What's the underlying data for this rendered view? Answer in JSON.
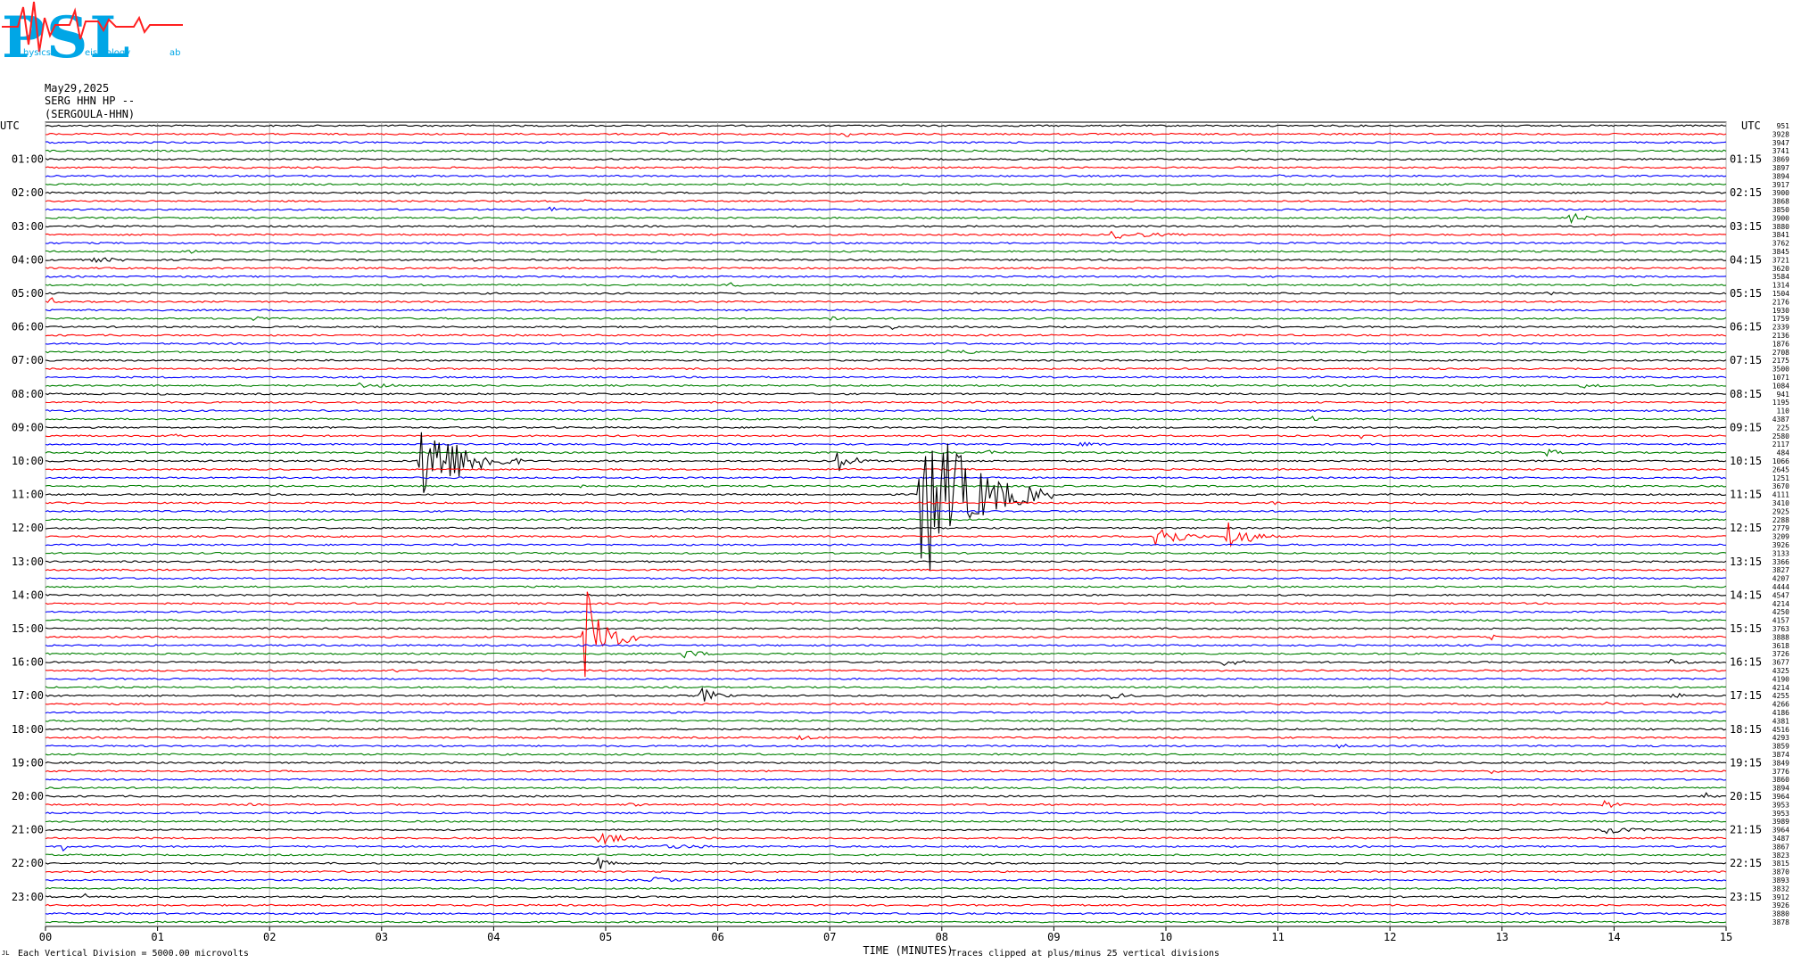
{
  "logo": {
    "text": "PSL",
    "caption_1": "hysics",
    "caption_2": "eismology",
    "caption_3": "ab"
  },
  "header": {
    "date": "May29,2025",
    "station": "SERG HHN HP --",
    "channel": "(SERGOULA-HHN)"
  },
  "axes": {
    "left_title": "UTC",
    "right_title": "UTC",
    "xlabel": "TIME (MINUTES)",
    "x_ticks": [
      "00",
      "01",
      "02",
      "03",
      "04",
      "05",
      "06",
      "07",
      "08",
      "09",
      "10",
      "11",
      "12",
      "13",
      "14",
      "15"
    ]
  },
  "left_hour_labels": [
    "01:00",
    "02:00",
    "03:00",
    "04:00",
    "05:00",
    "06:00",
    "07:00",
    "08:00",
    "09:00",
    "10:00",
    "11:00",
    "12:00",
    "13:00",
    "14:00",
    "15:00",
    "16:00",
    "17:00",
    "18:00",
    "19:00",
    "20:00",
    "21:00",
    "22:00",
    "23:00"
  ],
  "right_hour_labels": [
    "01:15",
    "02:15",
    "03:15",
    "04:15",
    "05:15",
    "06:15",
    "07:15",
    "08:15",
    "09:15",
    "10:15",
    "11:15",
    "12:15",
    "13:15",
    "14:15",
    "15:15",
    "16:15",
    "17:15",
    "18:15",
    "19:15",
    "20:15",
    "21:15",
    "22:15",
    "23:15"
  ],
  "footer": {
    "division": "Each Vertical Division = 5000.00 microvolts",
    "clip": "Traces clipped at plus/minus 25 vertical divisions",
    "corner": "JL"
  },
  "chart_data": {
    "type": "line",
    "title": "",
    "xlabel": "TIME (MINUTES)",
    "ylabel": "UTC",
    "xlim": [
      0,
      15
    ],
    "trace_count": 96,
    "trace_minutes": 15,
    "color_cycle": [
      "#000000",
      "#ff0000",
      "#0000ff",
      "#008000"
    ],
    "grid": true,
    "trace_offsets": [
      951,
      3928,
      3947,
      3741,
      3869,
      3897,
      3894,
      3917,
      3900,
      3868,
      3850,
      3900,
      3880,
      3841,
      3762,
      3845,
      3721,
      3620,
      3584,
      1314,
      1504,
      2176,
      1930,
      1759,
      2339,
      2136,
      1876,
      2708,
      2175,
      3500,
      1071,
      1084,
      941,
      1195,
      110,
      4387,
      225,
      2580,
      2117,
      484,
      1066,
      2645,
      1251,
      3670,
      4111,
      3410,
      2925,
      2288,
      2779,
      3209,
      3926,
      3133,
      3366,
      3827,
      4207,
      4444,
      4547,
      4214,
      4250,
      4157,
      3763,
      3888,
      3618,
      3726,
      3677,
      4325,
      4190,
      4214,
      4255,
      4266,
      4186,
      4381,
      4516,
      4293,
      3859,
      3874,
      3849,
      3776,
      3860,
      3894,
      3964,
      3953,
      3953,
      3989,
      3964,
      3487,
      3867,
      3823,
      3815,
      3870,
      3893,
      3832,
      3912,
      3926,
      3880,
      3878
    ],
    "events": [
      {
        "row": 1,
        "minute": 5.45,
        "amp": 3,
        "dur": 0.3
      },
      {
        "row": 1,
        "minute": 7.15,
        "amp": 8,
        "dur": 0.05
      },
      {
        "row": 4,
        "minute": 14.25,
        "amp": 3,
        "dur": 0.05
      },
      {
        "row": 6,
        "minute": 11.0,
        "amp": 2,
        "dur": 0.2
      },
      {
        "row": 9,
        "minute": 4.8,
        "amp": 2,
        "dur": 0.3
      },
      {
        "row": 10,
        "minute": 4.5,
        "amp": 3,
        "dur": 0.5
      },
      {
        "row": 11,
        "minute": 13.6,
        "amp": 10,
        "dur": 0.3
      },
      {
        "row": 13,
        "minute": 9.5,
        "amp": 5,
        "dur": 1.3
      },
      {
        "row": 13,
        "minute": 12.0,
        "amp": 2,
        "dur": 0.4
      },
      {
        "row": 15,
        "minute": 1.3,
        "amp": 3,
        "dur": 0.2
      },
      {
        "row": 16,
        "minute": 0.4,
        "amp": 3,
        "dur": 1.3
      },
      {
        "row": 16,
        "minute": 3.8,
        "amp": 3,
        "dur": 0.8
      },
      {
        "row": 16,
        "minute": 11.3,
        "amp": 3,
        "dur": 0.1
      },
      {
        "row": 19,
        "minute": 6.1,
        "amp": 3,
        "dur": 0.5
      },
      {
        "row": 20,
        "minute": 13.4,
        "amp": 2,
        "dur": 0.6
      },
      {
        "row": 21,
        "minute": 0.05,
        "amp": 8,
        "dur": 0.05
      },
      {
        "row": 23,
        "minute": 1.85,
        "amp": 4,
        "dur": 0.4
      },
      {
        "row": 23,
        "minute": 7.0,
        "amp": 4,
        "dur": 0.5
      },
      {
        "row": 24,
        "minute": 7.55,
        "amp": 4,
        "dur": 0.3
      },
      {
        "row": 26,
        "minute": 0.5,
        "amp": 2,
        "dur": 0.3
      },
      {
        "row": 27,
        "minute": 8.0,
        "amp": 3,
        "dur": 1.5
      },
      {
        "row": 31,
        "minute": 2.8,
        "amp": 4,
        "dur": 0.8
      },
      {
        "row": 31,
        "minute": 13.7,
        "amp": 4,
        "dur": 0.7
      },
      {
        "row": 32,
        "minute": 1.0,
        "amp": 2,
        "dur": 0.3
      },
      {
        "row": 35,
        "minute": 11.3,
        "amp": 8,
        "dur": 0.1
      },
      {
        "row": 37,
        "minute": 1.1,
        "amp": 5,
        "dur": 0.3
      },
      {
        "row": 37,
        "minute": 11.75,
        "amp": 8,
        "dur": 0.1
      },
      {
        "row": 38,
        "minute": 9.2,
        "amp": 3,
        "dur": 0.8
      },
      {
        "row": 39,
        "minute": 8.4,
        "amp": 3,
        "dur": 0.6
      },
      {
        "row": 39,
        "minute": 13.4,
        "amp": 6,
        "dur": 0.3
      },
      {
        "row": 40,
        "minute": 3.35,
        "amp": 60,
        "dur": 0.9
      },
      {
        "row": 40,
        "minute": 7.05,
        "amp": 16,
        "dur": 0.4
      },
      {
        "row": 43,
        "minute": 4.75,
        "amp": 3,
        "dur": 0.2
      },
      {
        "row": 44,
        "minute": 7.8,
        "amp": 110,
        "dur": 1.2
      },
      {
        "row": 45,
        "minute": 10.9,
        "amp": 4,
        "dur": 0.3
      },
      {
        "row": 47,
        "minute": 11.9,
        "amp": 3,
        "dur": 0.5
      },
      {
        "row": 49,
        "minute": 9.9,
        "amp": 22,
        "dur": 0.5
      },
      {
        "row": 49,
        "minute": 10.55,
        "amp": 20,
        "dur": 0.5
      },
      {
        "row": 57,
        "minute": 12.9,
        "amp": 3,
        "dur": 0.2
      },
      {
        "row": 61,
        "minute": 4.8,
        "amp": 70,
        "dur": 0.5
      },
      {
        "row": 61,
        "minute": 12.9,
        "amp": 5,
        "dur": 0.1
      },
      {
        "row": 63,
        "minute": 5.7,
        "amp": 6,
        "dur": 0.5
      },
      {
        "row": 64,
        "minute": 10.5,
        "amp": 5,
        "dur": 0.6
      },
      {
        "row": 64,
        "minute": 14.5,
        "amp": 4,
        "dur": 0.5
      },
      {
        "row": 65,
        "minute": 3.1,
        "amp": 6,
        "dur": 0.1
      },
      {
        "row": 68,
        "minute": 5.85,
        "amp": 10,
        "dur": 0.4
      },
      {
        "row": 68,
        "minute": 9.5,
        "amp": 4,
        "dur": 0.6
      },
      {
        "row": 68,
        "minute": 14.5,
        "amp": 6,
        "dur": 0.3
      },
      {
        "row": 69,
        "minute": 13.9,
        "amp": 3,
        "dur": 0.5
      },
      {
        "row": 72,
        "minute": 1.8,
        "amp": 2,
        "dur": 0.1
      },
      {
        "row": 72,
        "minute": 3.7,
        "amp": 3,
        "dur": 0.3
      },
      {
        "row": 73,
        "minute": 6.7,
        "amp": 3,
        "dur": 0.8
      },
      {
        "row": 74,
        "minute": 11.5,
        "amp": 3,
        "dur": 0.6
      },
      {
        "row": 77,
        "minute": 12.9,
        "amp": 3,
        "dur": 0.5
      },
      {
        "row": 80,
        "minute": 14.8,
        "amp": 5,
        "dur": 0.4
      },
      {
        "row": 81,
        "minute": 1.8,
        "amp": 2,
        "dur": 0.3
      },
      {
        "row": 81,
        "minute": 5.2,
        "amp": 3,
        "dur": 0.4
      },
      {
        "row": 81,
        "minute": 13.9,
        "amp": 6,
        "dur": 0.4
      },
      {
        "row": 84,
        "minute": 13.9,
        "amp": 5,
        "dur": 0.8
      },
      {
        "row": 85,
        "minute": 4.9,
        "amp": 10,
        "dur": 0.6
      },
      {
        "row": 86,
        "minute": 0.15,
        "amp": 7,
        "dur": 0.1
      },
      {
        "row": 86,
        "minute": 5.5,
        "amp": 3,
        "dur": 1.8
      },
      {
        "row": 88,
        "minute": 4.95,
        "amp": 20,
        "dur": 0.2
      },
      {
        "row": 90,
        "minute": 5.4,
        "amp": 4,
        "dur": 0.7
      },
      {
        "row": 92,
        "minute": 0.35,
        "amp": 6,
        "dur": 0.1
      }
    ]
  }
}
